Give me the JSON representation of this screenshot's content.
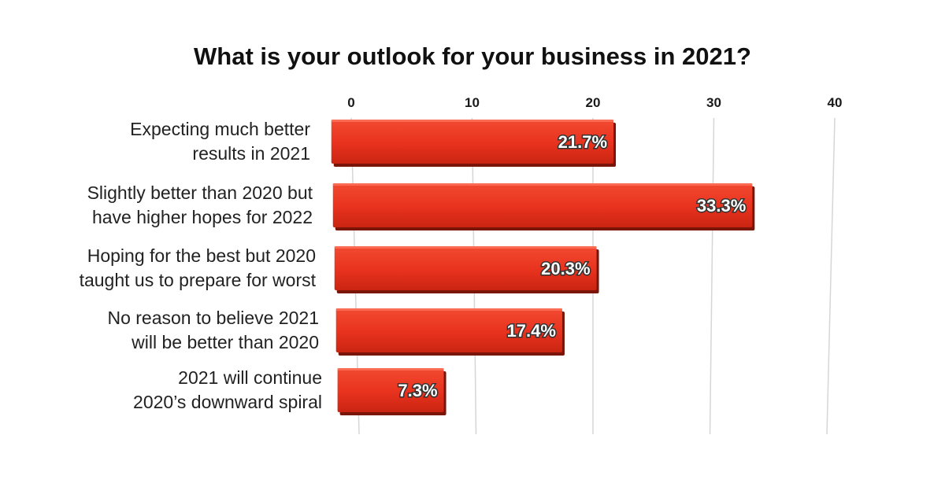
{
  "chart_data": {
    "type": "bar",
    "orientation": "horizontal",
    "title": "What is your outlook for your business in 2021?",
    "categories": [
      [
        "Expecting much better",
        "results in 2021"
      ],
      [
        "Slightly better than 2020 but",
        "have higher hopes for 2022"
      ],
      [
        "Hoping for the best but 2020",
        "taught us to prepare for worst"
      ],
      [
        "No reason to believe 2021",
        "will be better than 2020"
      ],
      [
        "2021 will continue",
        "2020’s downward spiral"
      ]
    ],
    "values": [
      21.7,
      33.3,
      20.3,
      17.4,
      7.3
    ],
    "value_labels": [
      "21.7%",
      "33.3%",
      "20.3%",
      "17.4%",
      "7.3%"
    ],
    "xlim": [
      0,
      40
    ],
    "x_ticks": [
      0,
      10,
      20,
      30,
      40
    ],
    "x_tick_labels": [
      "0",
      "10",
      "20",
      "30",
      "40"
    ],
    "x_axis_position": "top",
    "grid": true,
    "bar_color": "#e8321e",
    "bar_shadow_color": "#7a150a"
  }
}
